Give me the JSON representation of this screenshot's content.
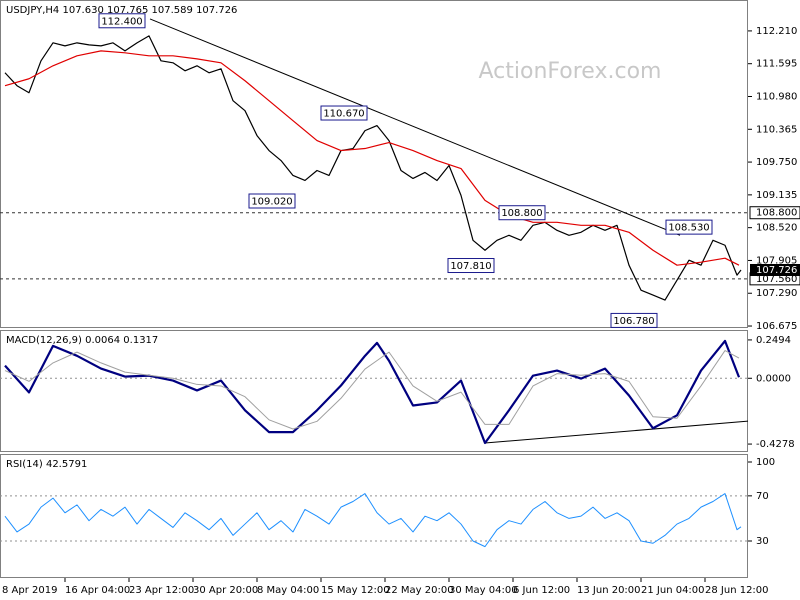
{
  "watermark": "ActionForex.com",
  "chart_data": [
    {
      "type": "line",
      "title": "USDJPY,H4  107.630 107.765 107.589 107.726",
      "xlim": [
        4.5,
        378.5
      ],
      "ylim": [
        106.638,
        112.771
      ],
      "yticks": [
        {
          "value": 112.21,
          "label": "112.210"
        },
        111.595,
        {
          "value": 110.98,
          "label": "110.980"
        },
        110.365,
        {
          "value": 109.75,
          "label": "109.750"
        },
        109.135,
        {
          "value": 108.52,
          "label": "108.520"
        },
        107.905,
        {
          "value": 107.29,
          "label": "107.290"
        },
        106.675
      ],
      "series": [
        {
          "color": "#000000",
          "x": [
            7,
            13,
            19,
            25,
            31,
            37,
            43,
            49,
            55,
            61,
            67,
            73,
            79,
            85,
            91,
            97,
            103,
            109,
            115,
            121,
            127,
            133,
            139,
            145,
            151,
            157,
            163,
            169,
            175,
            181,
            187,
            193,
            199,
            205,
            211,
            217,
            223,
            229,
            235,
            241,
            247,
            253,
            259,
            265,
            271,
            277,
            283,
            289,
            295,
            301,
            307,
            313,
            319,
            325,
            331,
            337,
            343,
            349,
            355,
            361,
            367,
            373,
            375
          ],
          "values": [
            111.425,
            111.182,
            111.051,
            111.649,
            111.986,
            111.929,
            111.986,
            111.948,
            111.929,
            111.986,
            111.836,
            111.986,
            112.117,
            111.649,
            111.612,
            111.462,
            111.556,
            111.425,
            111.5,
            110.901,
            110.714,
            110.247,
            109.966,
            109.779,
            109.499,
            109.405,
            109.592,
            109.499,
            109.966,
            110.004,
            110.34,
            110.434,
            110.153,
            109.592,
            109.443,
            109.555,
            109.405,
            109.686,
            109.125,
            108.283,
            108.096,
            108.283,
            108.377,
            108.283,
            108.564,
            108.62,
            108.47,
            108.377,
            108.433,
            108.564,
            108.47,
            108.564,
            107.816,
            107.348,
            107.255,
            107.161,
            107.535,
            107.91,
            107.816,
            108.283,
            108.19,
            107.629,
            107.726
          ]
        },
        {
          "color": "#e00000",
          "x": [
            7,
            19,
            31,
            43,
            55,
            67,
            79,
            91,
            103,
            115,
            127,
            139,
            151,
            163,
            175,
            187,
            199,
            211,
            223,
            235,
            247,
            259,
            271,
            283,
            295,
            307,
            319,
            331,
            343,
            355,
            367,
            374
          ],
          "values": [
            111.182,
            111.313,
            111.556,
            111.743,
            111.836,
            111.799,
            111.743,
            111.743,
            111.686,
            111.612,
            111.275,
            110.901,
            110.527,
            110.153,
            109.966,
            110.004,
            110.116,
            109.966,
            109.779,
            109.629,
            109.031,
            108.751,
            108.62,
            108.62,
            108.564,
            108.564,
            108.433,
            108.096,
            107.816,
            107.872,
            107.947,
            107.816
          ]
        }
      ],
      "trendline": {
        "x": [
          79.5,
          344.5
        ],
        "values": [
          112.434,
          108.377
        ],
        "color": "#000000"
      },
      "levels": [
        {
          "value": 108.8,
          "label": "108.800"
        },
        {
          "value": 107.56,
          "label": "107.560"
        }
      ],
      "last": 107.726,
      "annotations": [
        {
          "x": 78.5,
          "value": 112.4,
          "label": "112.400"
        },
        {
          "x": 189.5,
          "value": 110.67,
          "label": "110.670"
        },
        {
          "x": 153.5,
          "value": 109.02,
          "label": "109.020"
        },
        {
          "x": 278.5,
          "value": 108.8,
          "label": "108.800"
        },
        {
          "x": 253,
          "value": 107.81,
          "label": "107.810"
        },
        {
          "x": 362,
          "value": 108.53,
          "label": "108.530"
        },
        {
          "x": 334.5,
          "value": 106.78,
          "label": "106.780"
        }
      ]
    },
    {
      "type": "line",
      "title": "MACD(12,26,9) 0.0064 0.1317",
      "xlim": [
        4.5,
        378.5
      ],
      "ylim": [
        -0.4794,
        0.3074
      ],
      "yticks": [
        0.2494,
        {
          "value": 0,
          "label": "0.0000"
        },
        -0.4278
      ],
      "hlines": [
        0
      ],
      "series": [
        {
          "color": "#000080",
          "width": 2.2,
          "x": [
            7,
            19,
            31,
            43,
            55,
            67,
            79,
            91,
            103,
            115,
            127,
            139,
            151,
            163,
            175,
            187,
            193,
            199,
            211,
            223,
            235,
            247,
            259,
            271,
            283,
            295,
            307,
            319,
            331,
            343,
            355,
            367,
            374
          ],
          "values": [
            0.082,
            -0.092,
            0.211,
            0.146,
            0.063,
            0.011,
            0.017,
            -0.015,
            -0.079,
            -0.015,
            -0.208,
            -0.35,
            -0.35,
            -0.208,
            -0.047,
            0.146,
            0.23,
            0.114,
            -0.177,
            -0.157,
            -0.015,
            -0.421,
            -0.208,
            0.017,
            0.05,
            -0.002,
            0.063,
            -0.112,
            -0.325,
            -0.241,
            0.05,
            0.243,
            0.0064
          ]
        },
        {
          "color": "#a0a0a0",
          "width": 1,
          "x": [
            7,
            19,
            31,
            43,
            55,
            67,
            79,
            91,
            103,
            115,
            127,
            139,
            151,
            163,
            175,
            187,
            199,
            211,
            223,
            235,
            247,
            259,
            271,
            283,
            295,
            307,
            319,
            331,
            343,
            355,
            367,
            374
          ],
          "values": [
            0.05,
            -0.02,
            0.1,
            0.17,
            0.1,
            0.04,
            0.02,
            0,
            -0.04,
            -0.05,
            -0.12,
            -0.27,
            -0.33,
            -0.28,
            -0.13,
            0.06,
            0.17,
            -0.05,
            -0.15,
            -0.09,
            -0.3,
            -0.3,
            -0.05,
            0.03,
            0.02,
            0.03,
            -0.02,
            -0.25,
            -0.26,
            -0.05,
            0.18,
            0.1317
          ]
        }
      ],
      "trendline": {
        "x": [
          247,
          378.5
        ],
        "values": [
          -0.421,
          -0.279
        ],
        "color": "#000000"
      }
    },
    {
      "type": "line",
      "title": "RSI(14) 42.5791",
      "xlim": [
        4.5,
        378.5
      ],
      "ylim": [
        -2.8,
        106.2
      ],
      "yticks": [
        100,
        70,
        30
      ],
      "hlines": [
        70,
        30
      ],
      "series": [
        {
          "color": "#1e90ff",
          "width": 1,
          "x": [
            7,
            13,
            19,
            25,
            31,
            37,
            43,
            49,
            55,
            61,
            67,
            73,
            79,
            85,
            91,
            97,
            103,
            109,
            115,
            121,
            127,
            133,
            139,
            145,
            151,
            157,
            163,
            169,
            175,
            181,
            187,
            193,
            199,
            205,
            211,
            217,
            223,
            229,
            235,
            241,
            247,
            253,
            259,
            265,
            271,
            277,
            283,
            289,
            295,
            301,
            307,
            313,
            319,
            325,
            331,
            337,
            343,
            349,
            355,
            361,
            367,
            373,
            375
          ],
          "values": [
            52,
            38,
            45,
            60,
            68,
            55,
            62,
            48,
            58,
            52,
            60,
            45,
            58,
            50,
            42,
            55,
            48,
            40,
            50,
            35,
            45,
            55,
            40,
            48,
            38,
            58,
            52,
            45,
            60,
            65,
            72,
            55,
            45,
            50,
            38,
            52,
            48,
            55,
            45,
            30,
            25,
            40,
            48,
            45,
            58,
            65,
            55,
            50,
            52,
            60,
            50,
            55,
            48,
            30,
            28,
            35,
            45,
            50,
            60,
            65,
            72,
            40,
            42.5791
          ]
        }
      ],
      "xticks": [
        {
          "value": 0,
          "label": "8 Apr 2019"
        },
        {
          "value": 37,
          "label": "16 Apr 04:00"
        },
        {
          "value": 69,
          "label": "23 Apr 12:00"
        },
        {
          "value": 101,
          "label": "30 Apr 20:00"
        },
        {
          "value": 133,
          "label": "8 May 04:00"
        },
        {
          "value": 165,
          "label": "15 May 12:00"
        },
        {
          "value": 197,
          "label": "22 May 20:00"
        },
        {
          "value": 229,
          "label": "30 May 04:00"
        },
        {
          "value": 261,
          "label": "6 Jun 12:00"
        },
        {
          "value": 293,
          "label": "13 Jun 20:00"
        },
        {
          "value": 325,
          "label": "21 Jun 04:00"
        },
        {
          "value": 357,
          "label": "28 Jun 12:00"
        }
      ]
    }
  ]
}
